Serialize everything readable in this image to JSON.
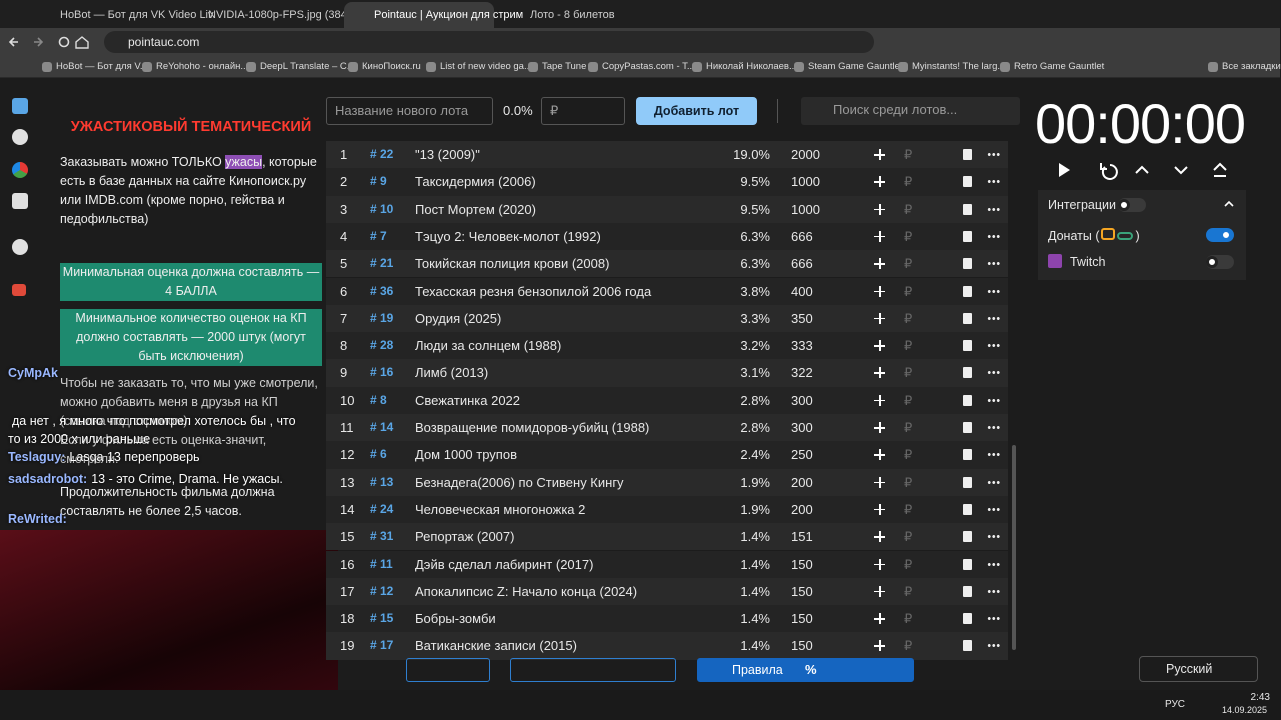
{
  "browser": {
    "tabs": [
      "HoBot — Бот для VK Video Liv",
      "NVIDIA-1080p-FPS.jpg (3840×2",
      "Pointauc | Аукцион для стрим",
      "Лото - 8 билетов"
    ],
    "url": "pointauc.com",
    "bookmarks": [
      "HoBot — Бот для V...",
      "ReYohoho - онлайн...",
      "DeepL Translate – C...",
      "КиноПоиск.ru",
      "List of new video ga...",
      "Tape Tune",
      "CopyPastas.com - T...",
      "Николай Николаев...",
      "Steam Game Gauntlet",
      "Myinstants! The larg...",
      "Retro Game Gauntlet"
    ],
    "all_bookmarks": "Все закладки"
  },
  "rules": {
    "title": "УЖАСТИКОВЫЙ ТЕМАТИЧЕСКИЙ",
    "para1_before": "Заказывать можно ТОЛЬКО ",
    "para1_highlight": "ужасы",
    "para1_after": ", которые есть в базе данных на сайте Кинопоиск.ру или IMDB.com (кроме порно, гейства и педофильства)",
    "box1": "Минимальная оценка должна составлять — 4 БАЛЛА",
    "box2": "Минимальное количество оценок на КП должно составлять — 2000 штук (могут быть исключения)",
    "para2": "Чтобы не заказать то, что мы уже смотрели, можно добавить меня в друзья на КП (ссылка под стримом).",
    "para3": "Если у фильма есть оценка-значит, смотрели.",
    "para4": "Продолжительность фильма должна составлять не более 2,5 часов."
  },
  "chat": [
    {
      "user": "CyMpAk",
      "text": ""
    },
    {
      "user": "",
      "text": "да нет , я много что посмотрел хотелось бы , что то из 2000 х или раньше"
    },
    {
      "user": "Teslaguy:",
      "text": "Lasqa 13 перепроверь"
    },
    {
      "user": "sadsadrobot:",
      "text": "13 - это Crime, Drama. Не ужасы."
    },
    {
      "user": "ReWrited:",
      "text": ""
    }
  ],
  "form": {
    "name_placeholder": "Название нового лота",
    "percent": "0.0%",
    "currency": "₽",
    "add_button": "Добавить лот",
    "search_placeholder": "Поиск среди лотов..."
  },
  "lots": [
    {
      "n": "1",
      "id": "# 22",
      "name": "\"13 (2009)\"",
      "percent": "19.0%",
      "amount": "2000"
    },
    {
      "n": "2",
      "id": "# 9",
      "name": "Таксидермия (2006)",
      "percent": "9.5%",
      "amount": "1000"
    },
    {
      "n": "3",
      "id": "# 10",
      "name": "Пост Мортем (2020)",
      "percent": "9.5%",
      "amount": "1000"
    },
    {
      "n": "4",
      "id": "# 7",
      "name": "Тэцуо 2: Человек-молот (1992)",
      "percent": "6.3%",
      "amount": "666"
    },
    {
      "n": "5",
      "id": "# 21",
      "name": "Токийская полиция крови (2008)",
      "percent": "6.3%",
      "amount": "666"
    },
    {
      "n": "6",
      "id": "# 36",
      "name": "Техасская резня бензопилой 2006 года",
      "percent": "3.8%",
      "amount": "400"
    },
    {
      "n": "7",
      "id": "# 19",
      "name": "Орудия (2025)",
      "percent": "3.3%",
      "amount": "350"
    },
    {
      "n": "8",
      "id": "# 28",
      "name": "Люди за солнцем (1988)",
      "percent": "3.2%",
      "amount": "333"
    },
    {
      "n": "9",
      "id": "# 16",
      "name": "Лимб (2013)",
      "percent": "3.1%",
      "amount": "322"
    },
    {
      "n": "10",
      "id": "# 8",
      "name": "Свежатинка 2022",
      "percent": "2.8%",
      "amount": "300"
    },
    {
      "n": "11",
      "id": "# 14",
      "name": "Возвращение помидоров-убийц (1988)",
      "percent": "2.8%",
      "amount": "300"
    },
    {
      "n": "12",
      "id": "# 6",
      "name": "Дом 1000 трупов",
      "percent": "2.4%",
      "amount": "250"
    },
    {
      "n": "13",
      "id": "# 13",
      "name": "Безнадега(2006) по Стивену Кингу",
      "percent": "1.9%",
      "amount": "200"
    },
    {
      "n": "14",
      "id": "# 24",
      "name": "Человеческая многоножка 2",
      "percent": "1.9%",
      "amount": "200"
    },
    {
      "n": "15",
      "id": "# 31",
      "name": "Репортаж (2007)",
      "percent": "1.4%",
      "amount": "151"
    },
    {
      "n": "16",
      "id": "# 11",
      "name": "Дэйв сделал лабиринт (2017)",
      "percent": "1.4%",
      "amount": "150"
    },
    {
      "n": "17",
      "id": "# 12",
      "name": "Апокалипсис Z: Начало конца (2024)",
      "percent": "1.4%",
      "amount": "150"
    },
    {
      "n": "18",
      "id": "# 15",
      "name": "Бобры-зомби",
      "percent": "1.4%",
      "amount": "150"
    },
    {
      "n": "19",
      "id": "# 17",
      "name": "Ватиканские записи (2015)",
      "percent": "1.4%",
      "amount": "150"
    }
  ],
  "timer": "00:00:00",
  "integrations": {
    "title": "Интеграции",
    "donations": "Донаты (",
    "donations_close": ")",
    "twitch": "Twitch"
  },
  "toolbar": {
    "rules": "Правила",
    "percent": "%"
  },
  "language": "Русский",
  "taskbar": {
    "lang": "РУС",
    "time": "2:43",
    "date": "14.09.2025"
  }
}
